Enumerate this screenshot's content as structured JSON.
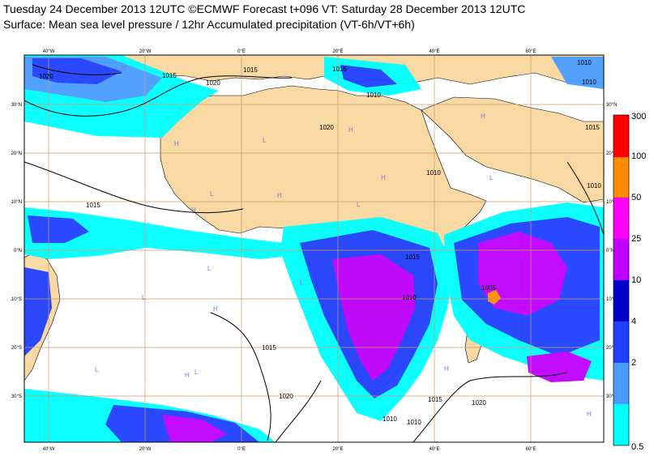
{
  "header": {
    "line1": "Tuesday 24 December 2013 12UTC ©ECMWF Forecast t+096 VT: Saturday 28 December 2013 12UTC",
    "line2": "Surface: Mean sea level pressure / 12hr Accumulated precipitation (VT-6h/VT+6h)"
  },
  "map": {
    "lon_labels": [
      "40°W",
      "20°W",
      "0°E",
      "20°E",
      "40°E",
      "60°E"
    ],
    "lat_labels_left": [
      "30°N",
      "20°N",
      "10°N",
      "0°N",
      "10°S",
      "20°S",
      "30°S"
    ],
    "lat_labels_right": [
      "30°N",
      "20°N",
      "10°N",
      "0°N",
      "10°S",
      "20°S",
      "30°S"
    ],
    "colors": {
      "land": "#f8d8a3",
      "ocean": "#ffffff",
      "grid": "#c89a6a",
      "isobar": "#000000"
    },
    "isobar_labels": [
      "1020",
      "1020",
      "1015",
      "1015",
      "1010",
      "1020",
      "1015",
      "1015",
      "1010",
      "1015",
      "1010",
      "1010",
      "1010",
      "1005",
      "1015",
      "1020",
      "1015",
      "1020",
      "1010",
      "1010",
      "1010",
      "1015"
    ],
    "pressure_centres": [
      {
        "type": "H",
        "color": "#7a7ad0"
      },
      {
        "type": "H",
        "color": "#7a7ad0"
      },
      {
        "type": "H",
        "color": "#7a7ad0"
      },
      {
        "type": "H",
        "color": "#7a7ad0"
      },
      {
        "type": "L",
        "color": "#7a7ad0"
      },
      {
        "type": "L",
        "color": "#7a7ad0"
      },
      {
        "type": "H",
        "color": "#7a7ad0"
      },
      {
        "type": "L",
        "color": "#7a7ad0"
      },
      {
        "type": "L",
        "color": "#7a7ad0"
      },
      {
        "type": "L",
        "color": "#7a7ad0"
      },
      {
        "type": "H",
        "color": "#7a7ad0"
      },
      {
        "type": "L",
        "color": "#7a7ad0"
      },
      {
        "type": "L",
        "color": "#7a7ad0"
      },
      {
        "type": "H",
        "color": "#7a7ad0"
      },
      {
        "type": "H",
        "color": "#7a7ad0"
      },
      {
        "type": "L",
        "color": "#7a7ad0"
      },
      {
        "type": "H",
        "color": "#7a7ad0"
      },
      {
        "type": "H",
        "color": "#7a7ad0"
      },
      {
        "type": "L",
        "color": "#7a7ad0"
      },
      {
        "type": "H",
        "color": "#7a7ad0"
      }
    ]
  },
  "legend": {
    "levels": [
      "300",
      "100",
      "50",
      "25",
      "10",
      "4",
      "2",
      "0.5"
    ],
    "colors": [
      "#ff0000",
      "#ff8c00",
      "#ff00ff",
      "#c000ff",
      "#0000cc",
      "#2040ff",
      "#4a9cff",
      "#00ffff"
    ]
  }
}
